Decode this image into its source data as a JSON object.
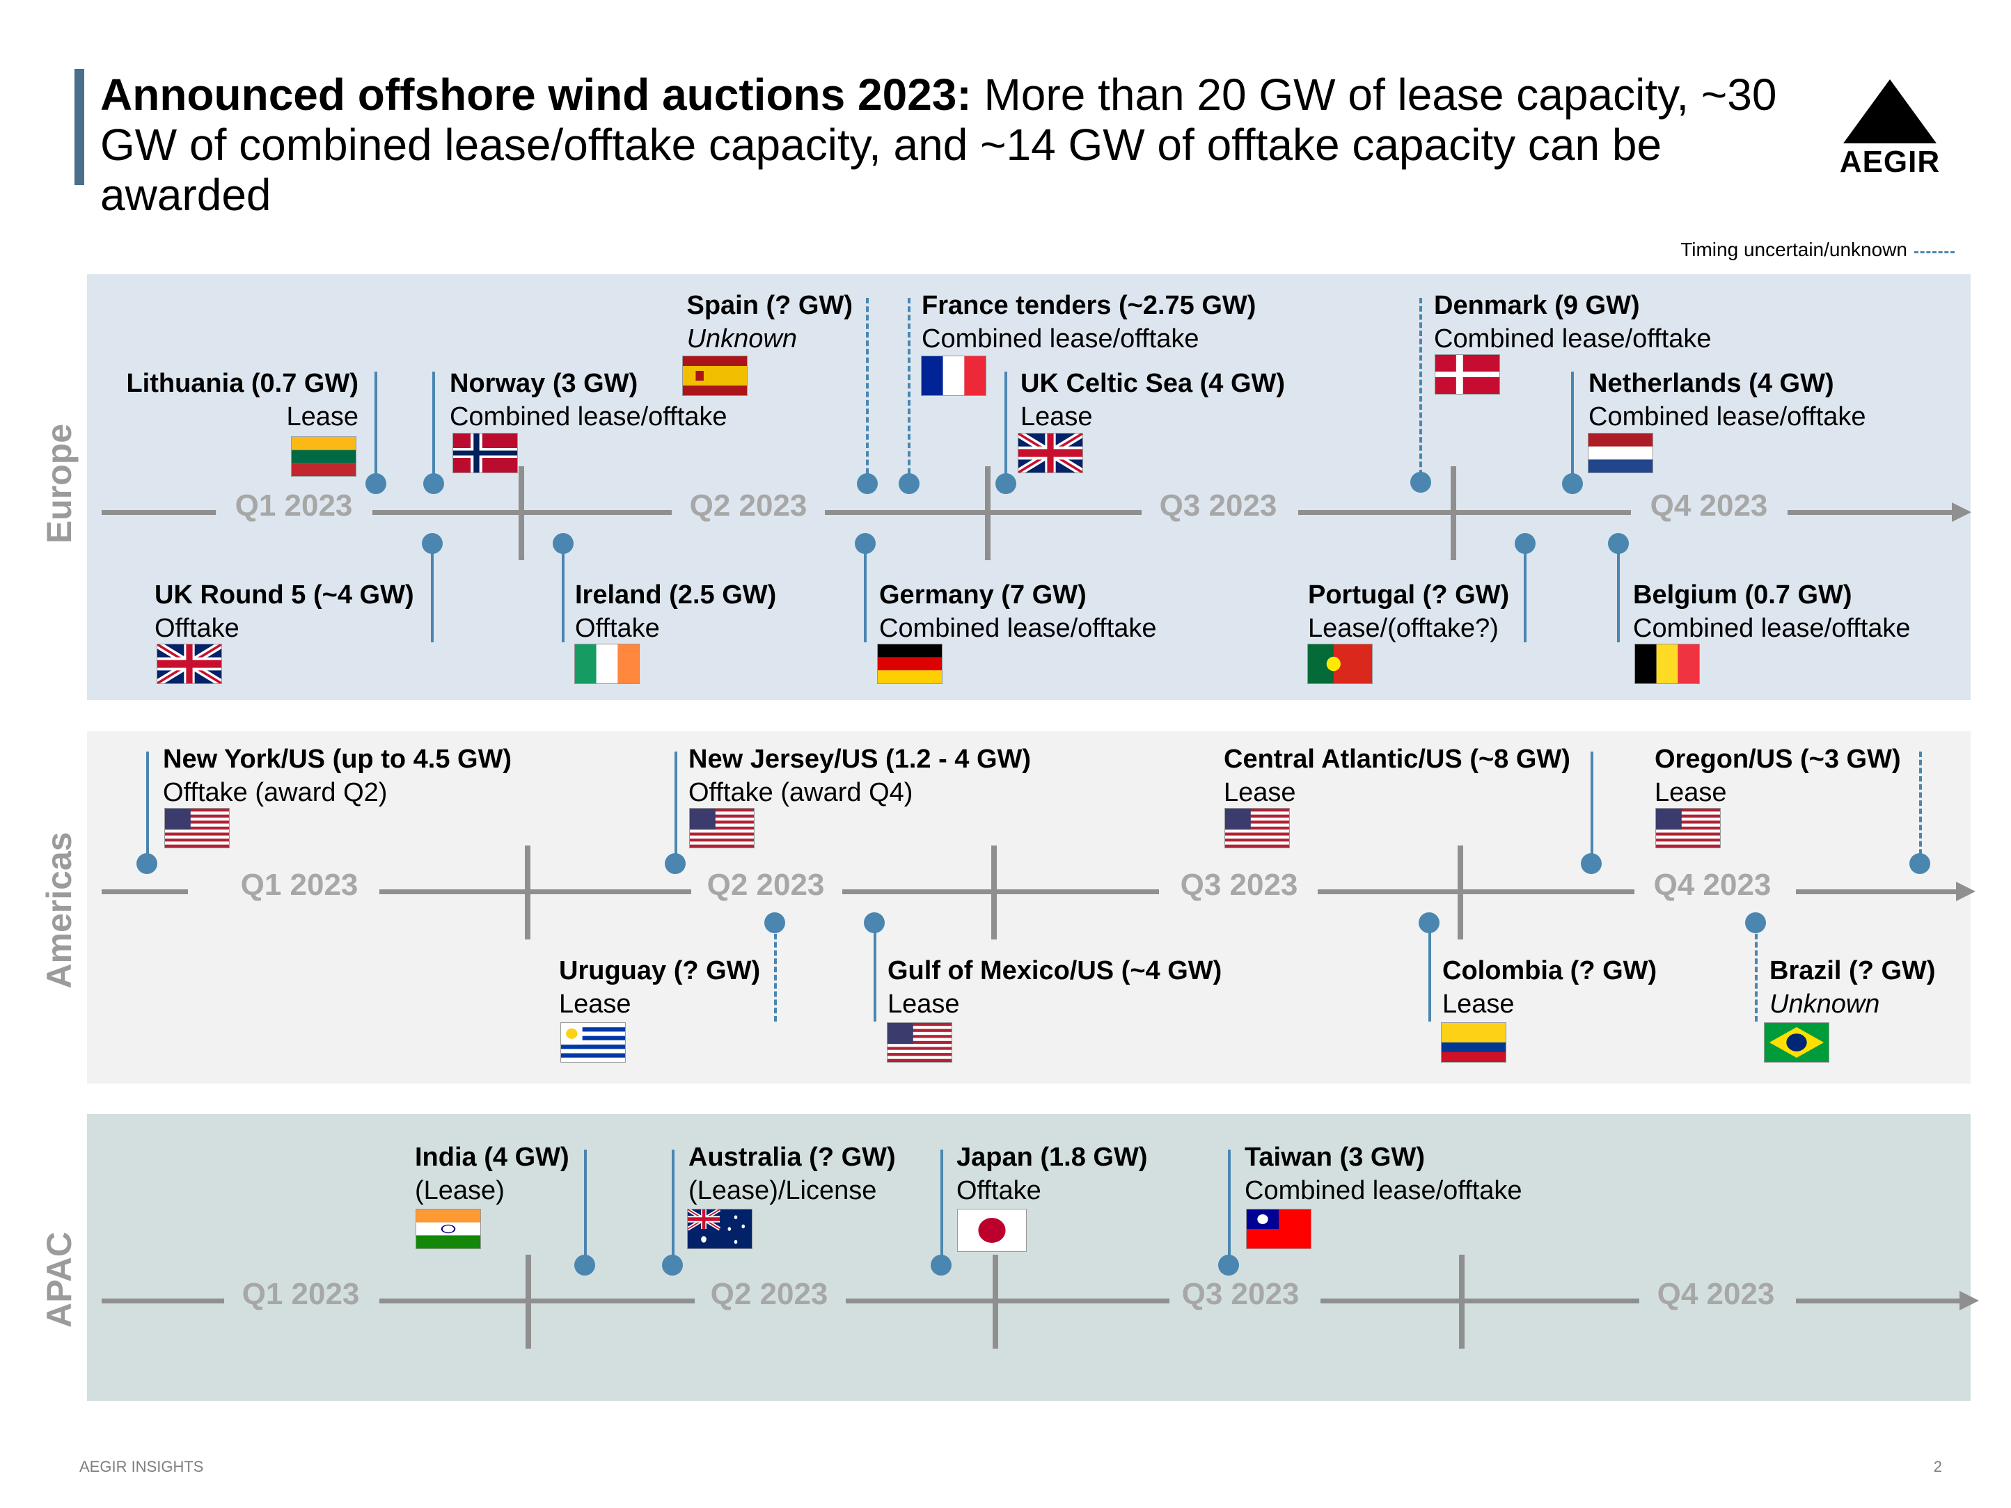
{
  "title": {
    "bold": "Announced offshore wind auctions 2023:",
    "rest": " More than 20 GW of lease capacity, ~30 GW of combined lease/offtake capacity, and ~14 GW of offtake capacity can be awarded"
  },
  "logo": {
    "text": "AEGIR"
  },
  "timing_note": "Timing uncertain/unknown",
  "quarters": [
    "Q1 2023",
    "Q2 2023",
    "Q3 2023",
    "Q4 2023"
  ],
  "regions": {
    "europe": {
      "label": "Europe",
      "events": [
        {
          "name": "Lithuania (0.7 GW)",
          "type": "Lease",
          "flag": "lithuania-flag"
        },
        {
          "name": "Norway (3 GW)",
          "type": "Combined lease/offtake",
          "flag": "norway-flag"
        },
        {
          "name": "Spain (? GW)",
          "type": "Unknown",
          "flag": "spain-flag"
        },
        {
          "name": "France tenders (~2.75 GW)",
          "type": "Combined lease/offtake",
          "flag": "france-flag"
        },
        {
          "name": "UK Celtic Sea (4 GW)",
          "type": "Lease",
          "flag": "uk-flag"
        },
        {
          "name": "Denmark (9 GW)",
          "type": "Combined lease/offtake",
          "flag": "denmark-flag"
        },
        {
          "name": "Netherlands (4 GW)",
          "type": "Combined lease/offtake",
          "flag": "netherlands-flag"
        },
        {
          "name": "UK Round 5 (~4 GW)",
          "type": "Offtake",
          "flag": "uk-flag"
        },
        {
          "name": "Ireland (2.5 GW)",
          "type": "Offtake",
          "flag": "ireland-flag"
        },
        {
          "name": "Germany (7 GW)",
          "type": "Combined lease/offtake",
          "flag": "germany-flag"
        },
        {
          "name": "Portugal (? GW)",
          "type": "Lease/(offtake?)",
          "flag": "portugal-flag"
        },
        {
          "name": "Belgium (0.7 GW)",
          "type": "Combined lease/offtake",
          "flag": "belgium-flag"
        }
      ]
    },
    "americas": {
      "label": "Americas",
      "events": [
        {
          "name": "New York/US (up to 4.5 GW)",
          "type": "Offtake (award Q2)",
          "flag": "us-flag"
        },
        {
          "name": "New Jersey/US (1.2 - 4 GW)",
          "type": "Offtake (award Q4)",
          "flag": "us-flag"
        },
        {
          "name": "Central Atlantic/US (~8 GW)",
          "type": "Lease",
          "flag": "us-flag"
        },
        {
          "name": "Oregon/US (~3 GW)",
          "type": "Lease",
          "flag": "us-flag"
        },
        {
          "name": "Uruguay (? GW)",
          "type": "Lease",
          "flag": "uruguay-flag"
        },
        {
          "name": "Gulf of Mexico/US (~4 GW)",
          "type": "Lease",
          "flag": "us-flag"
        },
        {
          "name": "Colombia (? GW)",
          "type": "Lease",
          "flag": "colombia-flag"
        },
        {
          "name": "Brazil (? GW)",
          "type": "Unknown",
          "flag": "brazil-flag"
        }
      ]
    },
    "apac": {
      "label": "APAC",
      "events": [
        {
          "name": "India (4 GW)",
          "type": "(Lease)",
          "flag": "india-flag"
        },
        {
          "name": "Australia (? GW)",
          "type": "(Lease)/License",
          "flag": "australia-flag"
        },
        {
          "name": "Japan (1.8 GW)",
          "type": "Offtake",
          "flag": "japan-flag"
        },
        {
          "name": "Taiwan (3 GW)",
          "type": "Combined lease/offtake",
          "flag": "taiwan-flag"
        }
      ]
    }
  },
  "footer": {
    "left": "AEGIR INSIGHTS",
    "page": "2"
  },
  "colors": {
    "accent": "#4a6f8a",
    "marker": "#4a86b0",
    "axis": "#8f8f8f",
    "europe_band": "#dde6ee",
    "americas_band": "#f2f2f2",
    "apac_band": "#d3dfdf"
  }
}
